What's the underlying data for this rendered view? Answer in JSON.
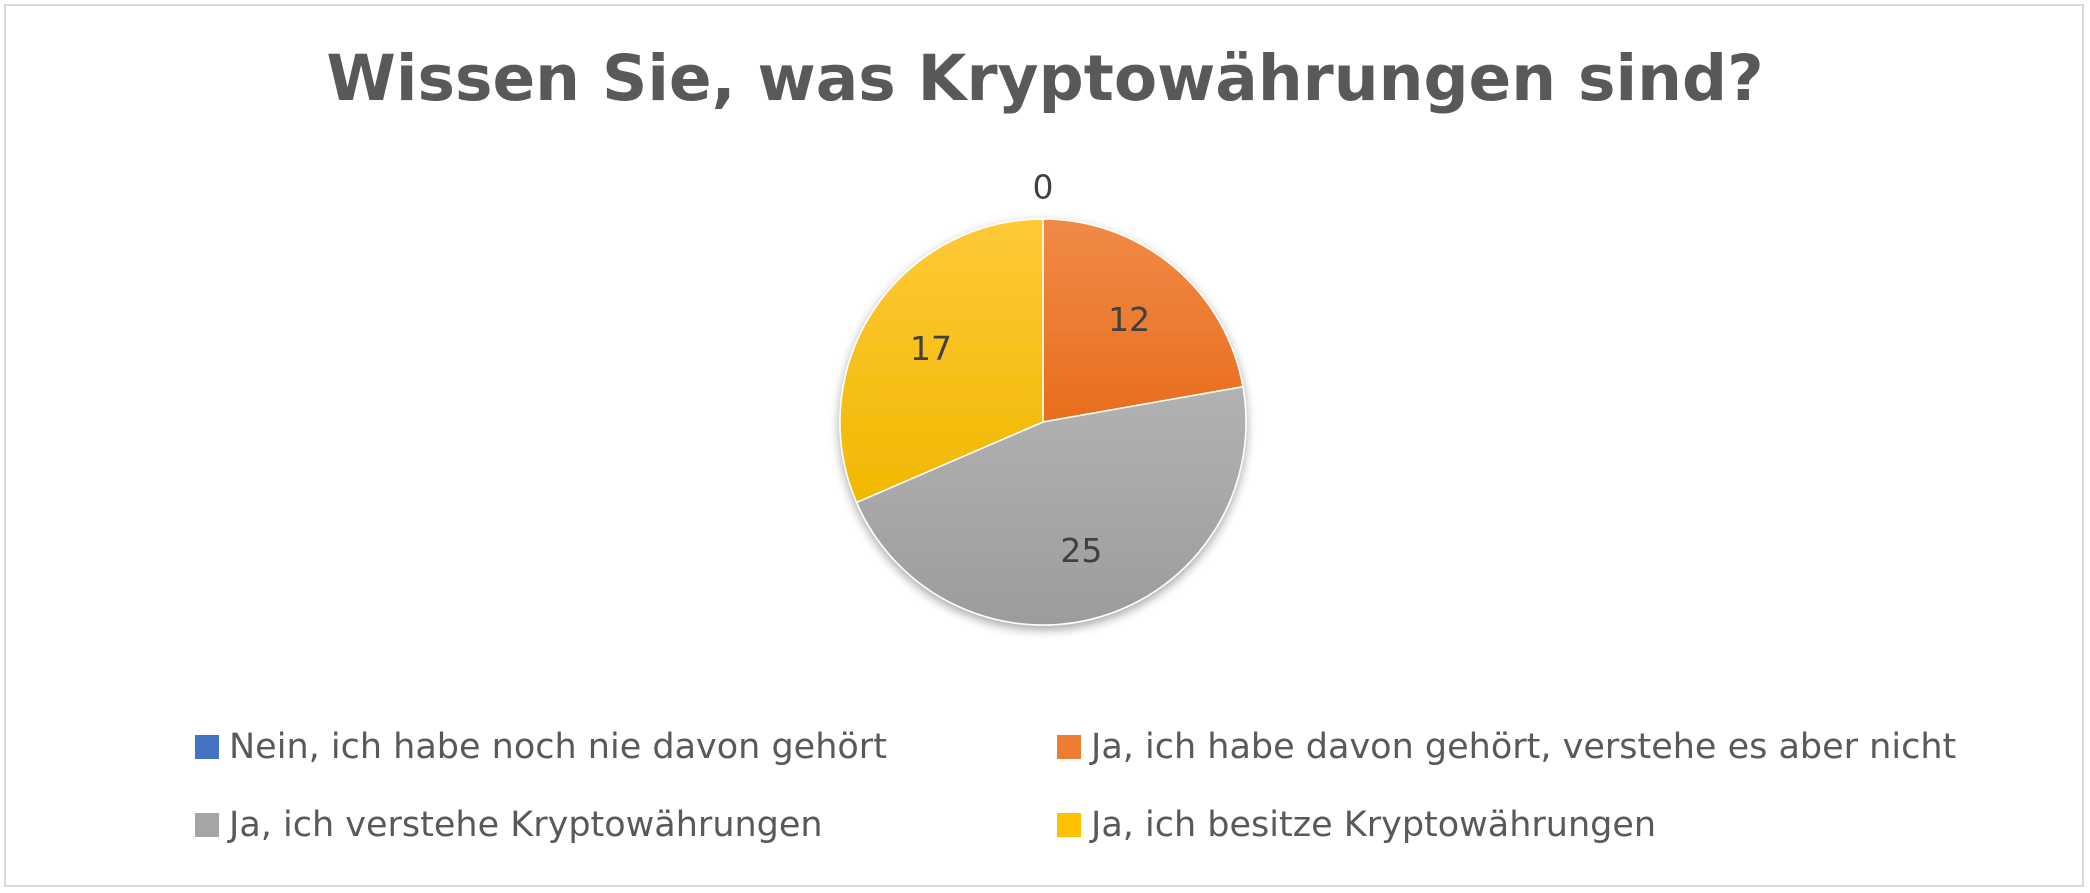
{
  "chart_data": {
    "type": "pie",
    "title": "Wissen Sie, was Kryptowährungen sind?",
    "categories": [
      "Nein, ich habe noch nie davon gehört",
      "Ja, ich habe davon gehört, verstehe es aber nicht",
      "Ja, ich verstehe Kryptowährungen",
      "Ja, ich besitze Kryptowährungen"
    ],
    "values": [
      0,
      12,
      25,
      17
    ],
    "data_labels": [
      "0",
      "12",
      "25",
      "17"
    ],
    "colors": [
      "#4472C4",
      "#ED7D31",
      "#A5A5A5",
      "#FFC000"
    ],
    "legend_position": "bottom"
  }
}
